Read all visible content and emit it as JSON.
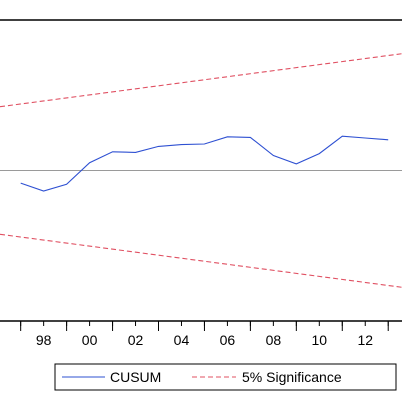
{
  "chart_data": {
    "type": "line",
    "title": "",
    "xlabel": "",
    "ylabel": "",
    "x_tick_labels": [
      "98",
      "00",
      "02",
      "04",
      "06",
      "08",
      "10",
      "12"
    ],
    "x_tick_years": [
      1998,
      2000,
      2002,
      2004,
      2006,
      2008,
      2010,
      2012
    ],
    "xlim": [
      1996.1,
      2013.6
    ],
    "ylim": [
      -25,
      25
    ],
    "grid": false,
    "zero_line": true,
    "legend_position": "bottom",
    "series": [
      {
        "name": "CUSUM",
        "color": "#2e50d2",
        "style": "solid",
        "x": [
          1997,
          1998,
          1999,
          2000,
          2001,
          2002,
          2003,
          2004,
          2005,
          2006,
          2007,
          2008,
          2009,
          2010,
          2011,
          2012,
          2013
        ],
        "y": [
          -2.1,
          -3.4,
          -2.3,
          1.3,
          3.1,
          3.0,
          4.0,
          4.3,
          4.4,
          5.6,
          5.5,
          2.5,
          1.1,
          2.8,
          5.7,
          5.4,
          5.1
        ]
      },
      {
        "name": "5% Significance",
        "color": "#e05062",
        "style": "dashed",
        "x": [
          1996.1,
          2013.6
        ],
        "y": [
          10.6,
          19.4
        ]
      },
      {
        "name": "5% Significance",
        "color": "#e05062",
        "style": "dashed",
        "x": [
          1996.1,
          2013.6
        ],
        "y": [
          -10.6,
          -19.4
        ]
      }
    ]
  },
  "legend": {
    "items": [
      {
        "label": "CUSUM",
        "color": "#2e50d2",
        "style": "solid"
      },
      {
        "label": "5% Significance",
        "color": "#e05062",
        "style": "dashed"
      }
    ]
  }
}
